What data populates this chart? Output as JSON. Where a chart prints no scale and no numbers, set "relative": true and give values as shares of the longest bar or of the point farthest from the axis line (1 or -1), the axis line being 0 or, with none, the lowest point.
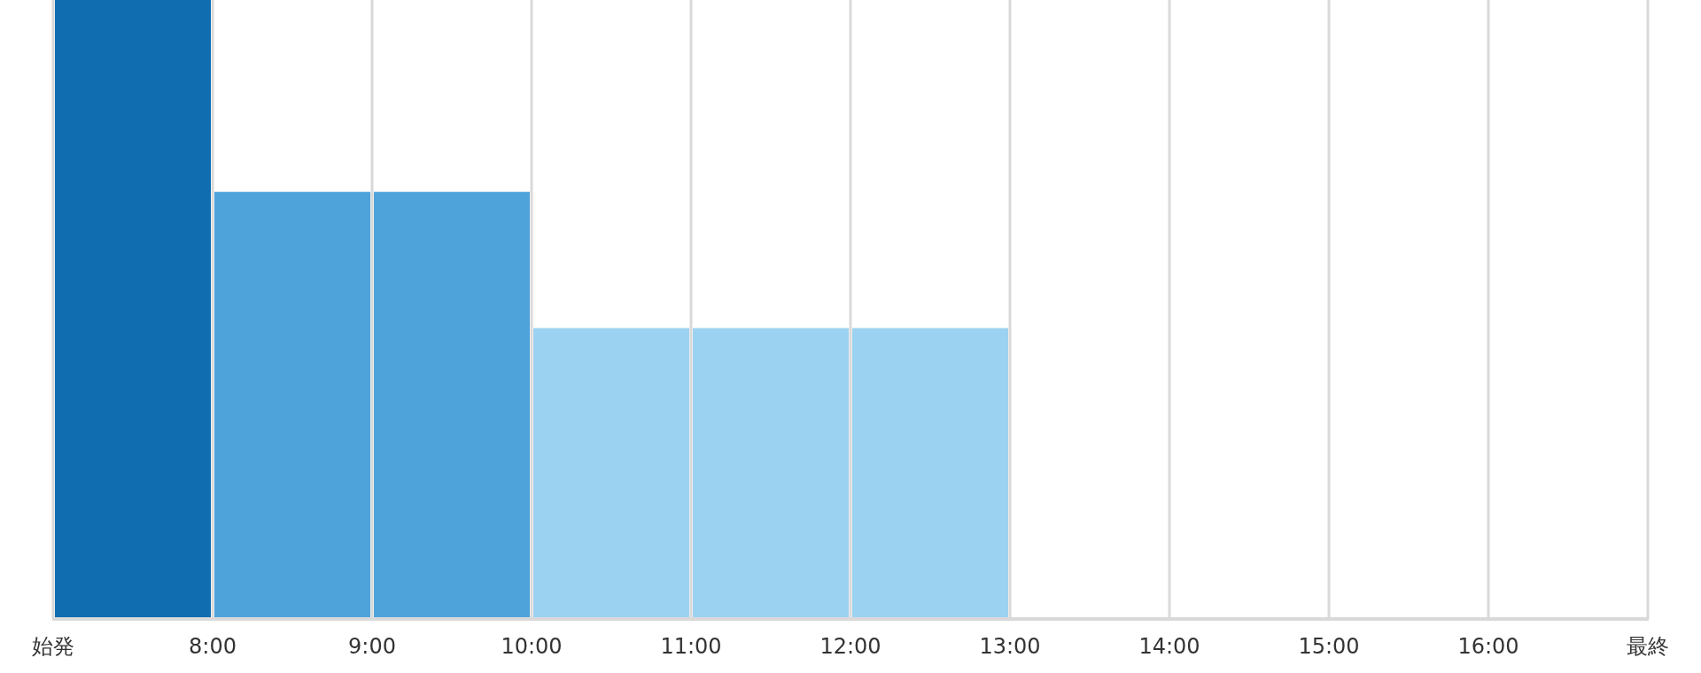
{
  "chart_data": {
    "type": "bar",
    "relative": true,
    "x": [
      7.5,
      8.5,
      9.5,
      10.5,
      11.5,
      12.5,
      13.5,
      14.5,
      15.5,
      16.5
    ],
    "values": [
      1,
      0.69,
      0.69,
      0.47,
      0.47,
      0.47,
      0,
      0,
      0,
      0
    ],
    "colors": [
      "#106eb0",
      "#4fa3db",
      "#4fa3db",
      "#9cd2f1",
      "#9cd2f1",
      "#9cd2f1",
      "#9cd2f1",
      "#9cd2f1",
      "#9cd2f1",
      "#9cd2f1"
    ],
    "xlim": [
      7,
      17
    ],
    "xticks": [
      {
        "value": 7,
        "label": "始発"
      },
      {
        "value": 8,
        "label": "8:00"
      },
      {
        "value": 9,
        "label": "9:00"
      },
      {
        "value": 10,
        "label": "10:00"
      },
      {
        "value": 11,
        "label": "11:00"
      },
      {
        "value": 12,
        "label": "12:00"
      },
      {
        "value": 13,
        "label": "13:00"
      },
      {
        "value": 14,
        "label": "14:00"
      },
      {
        "value": 15,
        "label": "15:00"
      },
      {
        "value": 16,
        "label": "16:00"
      },
      {
        "value": 17,
        "label": "最終"
      }
    ],
    "grid": "x"
  }
}
